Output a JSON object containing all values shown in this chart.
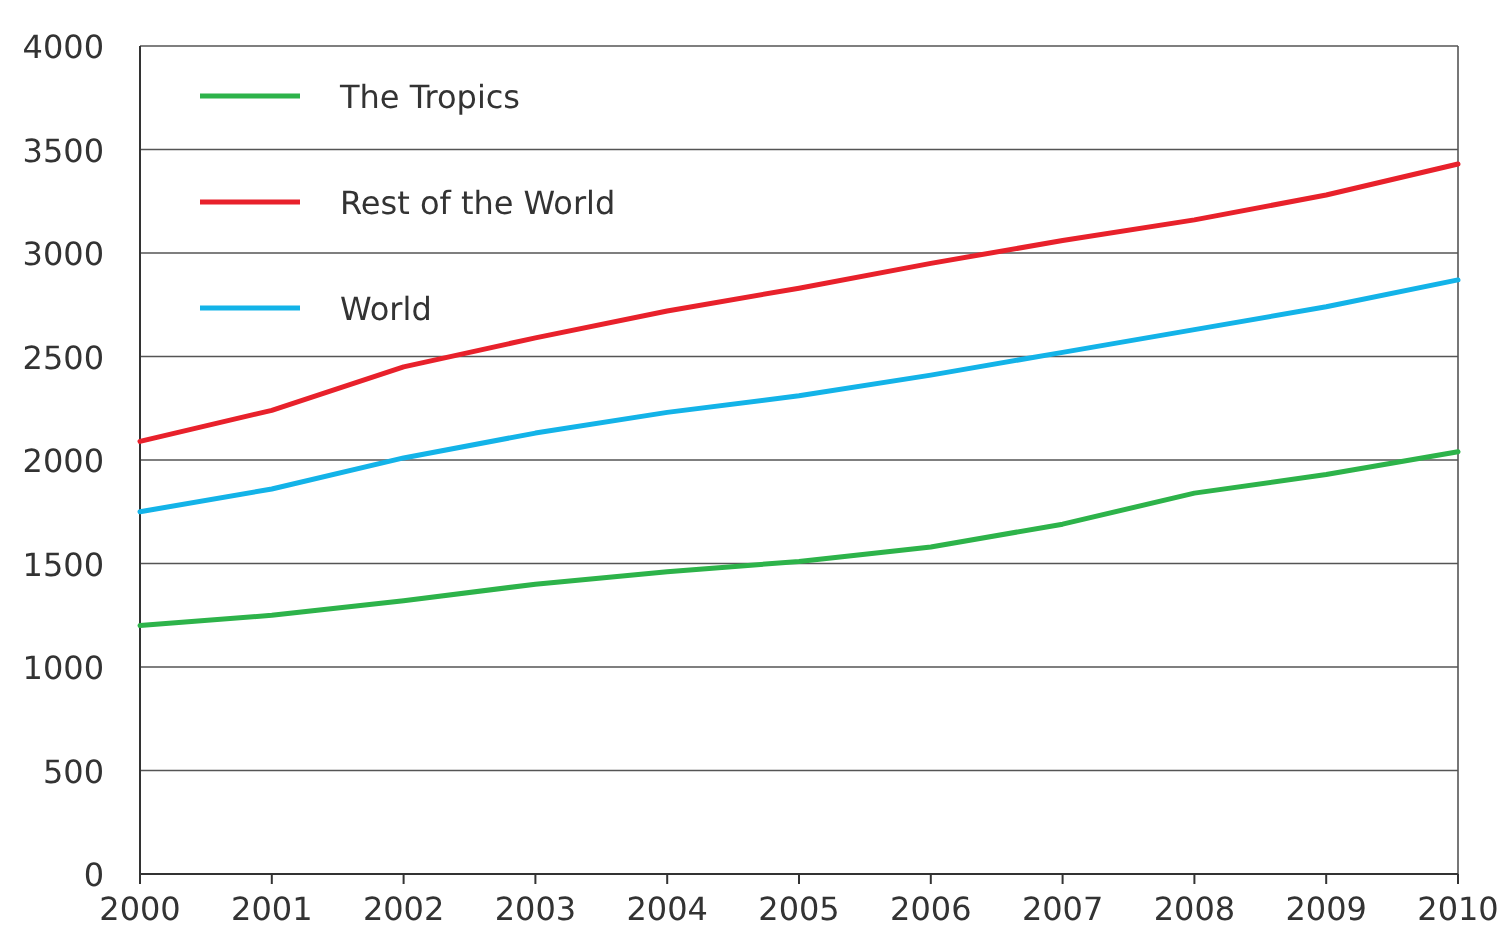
{
  "chart_data": {
    "type": "line",
    "x": [
      2000,
      2001,
      2002,
      2003,
      2004,
      2005,
      2006,
      2007,
      2008,
      2009,
      2010
    ],
    "series": [
      {
        "name": "The Tropics",
        "color": "#2db34a",
        "values": [
          1200,
          1250,
          1320,
          1400,
          1460,
          1510,
          1580,
          1690,
          1840,
          1930,
          2040
        ]
      },
      {
        "name": "Rest of the World",
        "color": "#e8212b",
        "values": [
          2090,
          2240,
          2450,
          2590,
          2720,
          2830,
          2950,
          3060,
          3160,
          3280,
          3430
        ]
      },
      {
        "name": "World",
        "color": "#13b3e8",
        "values": [
          1750,
          1860,
          2010,
          2130,
          2230,
          2310,
          2410,
          2520,
          2630,
          2740,
          2870
        ]
      }
    ],
    "xlim": [
      2000,
      2010
    ],
    "xticks": [
      2000,
      2001,
      2002,
      2003,
      2004,
      2005,
      2006,
      2007,
      2008,
      2009,
      2010
    ],
    "ylim": [
      0,
      4000
    ],
    "yticks": [
      0,
      500,
      1000,
      1500,
      2000,
      2500,
      3000,
      3500,
      4000
    ],
    "grid": "y",
    "legend": "top left",
    "marker": "none",
    "line_style": "solid"
  }
}
